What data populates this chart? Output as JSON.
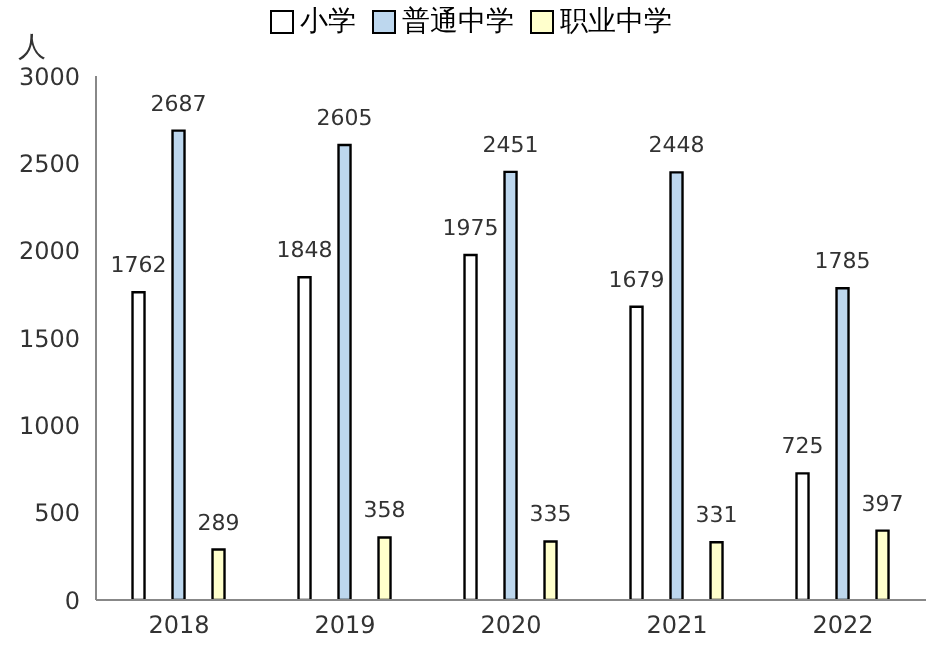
{
  "chart_data": {
    "type": "bar",
    "ylabel": "人",
    "categories": [
      "2018",
      "2019",
      "2020",
      "2021",
      "2022"
    ],
    "series": [
      {
        "name": "小学",
        "color": "#ffffff",
        "values": [
          1762,
          1848,
          1975,
          1679,
          725
        ]
      },
      {
        "name": "普通中学",
        "color": "#bdd7ee",
        "values": [
          2687,
          2605,
          2451,
          2448,
          1785
        ]
      },
      {
        "name": "职业中学",
        "color": "#ffffcc",
        "values": [
          289,
          358,
          335,
          331,
          397
        ]
      }
    ],
    "ylim": [
      0,
      3000
    ],
    "yticks": [
      0,
      500,
      1000,
      1500,
      2000,
      2500,
      3000
    ],
    "grid": false,
    "legend": "top",
    "data_labels": true
  }
}
